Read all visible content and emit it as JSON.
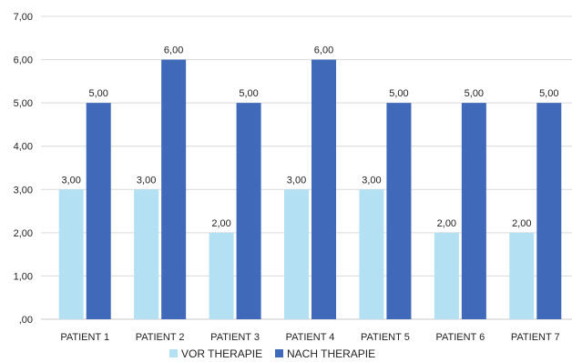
{
  "chart_data": {
    "type": "bar",
    "categories": [
      "PATIENT 1",
      "PATIENT 2",
      "PATIENT 3",
      "PATIENT 4",
      "PATIENT 5",
      "PATIENT 6",
      "PATIENT 7"
    ],
    "series": [
      {
        "name": "VOR THERAPIE",
        "values": [
          3,
          3,
          2,
          3,
          3,
          2,
          2
        ],
        "labels": [
          "3,00",
          "3,00",
          "2,00",
          "3,00",
          "3,00",
          "2,00",
          "2,00"
        ],
        "color": "#b3e0f2"
      },
      {
        "name": "NACH THERAPIE",
        "values": [
          5,
          6,
          5,
          6,
          5,
          5,
          5
        ],
        "labels": [
          "5,00",
          "6,00",
          "5,00",
          "6,00",
          "5,00",
          "5,00",
          "5,00"
        ],
        "color": "#4169b9"
      }
    ],
    "yticks": [
      ",00",
      "1,00",
      "2,00",
      "3,00",
      "4,00",
      "5,00",
      "6,00",
      "7,00"
    ],
    "ylim": [
      0,
      7
    ],
    "grid": true,
    "legend_position": "bottom-center",
    "title": "",
    "xlabel": "",
    "ylabel": ""
  }
}
